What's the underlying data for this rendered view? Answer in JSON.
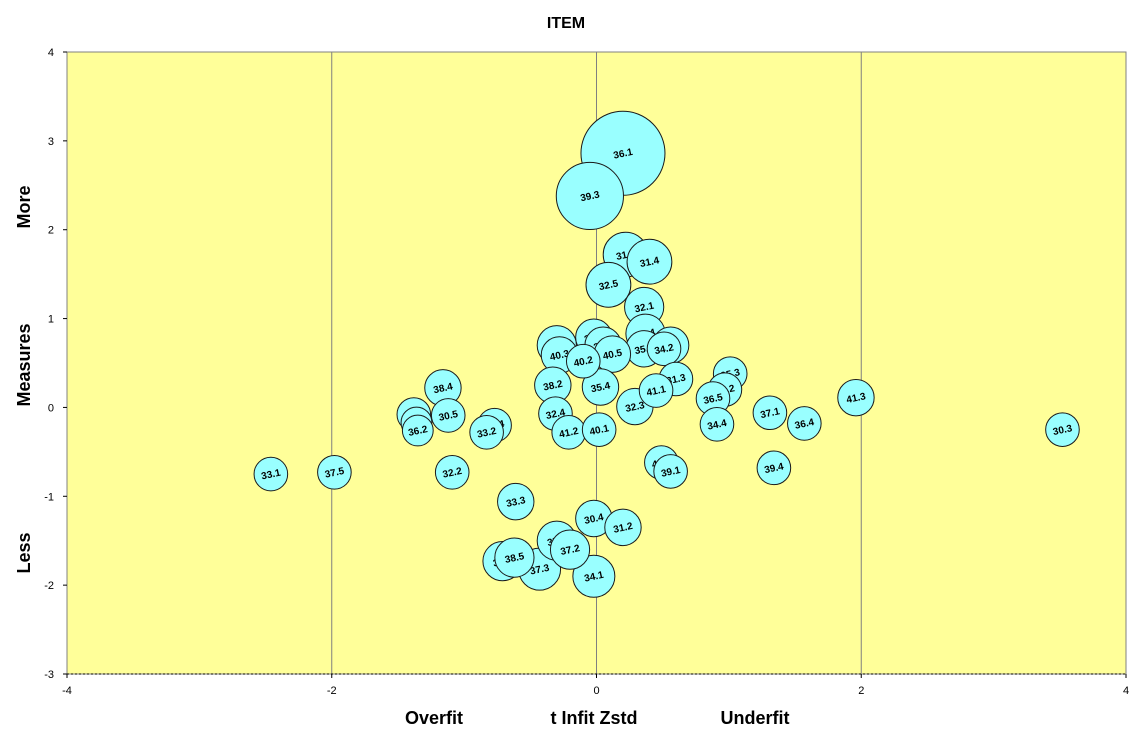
{
  "chart_data": {
    "type": "scatter",
    "title": "ITEM",
    "xlabel": {
      "left": "Overfit",
      "center": "t Infit Zstd",
      "right": "Underfit"
    },
    "ylabel": {
      "bottom": "Less",
      "center": "Measures",
      "top": "More"
    },
    "xlim": [
      -4,
      4
    ],
    "ylim": [
      -3,
      4
    ],
    "x_ticks": [
      "-4",
      "-2",
      "0",
      "2",
      "4"
    ],
    "y_ticks": [
      "-3",
      "-2",
      "-1",
      "0",
      "1",
      "2",
      "3",
      "4"
    ],
    "grid": "vertical",
    "plot_bg": "#ffff99",
    "bubble_fill": "#99ffff",
    "points": [
      {
        "label": "36.1",
        "x": 0.2,
        "y": 2.86,
        "size": 3.0
      },
      {
        "label": "39.3",
        "x": -0.05,
        "y": 2.38,
        "size": 2.4
      },
      {
        "label": "31.1",
        "x": 0.22,
        "y": 1.72,
        "size": 1.6
      },
      {
        "label": "31.4",
        "x": 0.4,
        "y": 1.64,
        "size": 1.6
      },
      {
        "label": "32.5",
        "x": 0.09,
        "y": 1.38,
        "size": 1.6
      },
      {
        "label": "32.1",
        "x": 0.36,
        "y": 1.13,
        "size": 1.4
      },
      {
        "label": "41.4",
        "x": 0.37,
        "y": 0.83,
        "size": 1.4
      },
      {
        "label": "36.2",
        "x": -0.02,
        "y": 0.79,
        "size": 1.3
      },
      {
        "label": "30.1",
        "x": 0.05,
        "y": 0.7,
        "size": 1.3
      },
      {
        "label": "38.3",
        "x": -0.3,
        "y": 0.7,
        "size": 1.4
      },
      {
        "label": "35.2",
        "x": 0.36,
        "y": 0.66,
        "size": 1.3
      },
      {
        "label": "36.3",
        "x": 0.56,
        "y": 0.7,
        "size": 1.3
      },
      {
        "label": "34.2",
        "x": 0.51,
        "y": 0.66,
        "size": 1.2
      },
      {
        "label": "40.3",
        "x": -0.28,
        "y": 0.59,
        "size": 1.3
      },
      {
        "label": "40.5",
        "x": 0.12,
        "y": 0.6,
        "size": 1.3
      },
      {
        "label": "40.2",
        "x": -0.1,
        "y": 0.52,
        "size": 1.2
      },
      {
        "label": "31.3",
        "x": 0.6,
        "y": 0.32,
        "size": 1.2
      },
      {
        "label": "35.3",
        "x": 1.01,
        "y": 0.38,
        "size": 1.2
      },
      {
        "label": "38.4",
        "x": -1.16,
        "y": 0.22,
        "size": 1.3
      },
      {
        "label": "38.2",
        "x": -0.33,
        "y": 0.25,
        "size": 1.3
      },
      {
        "label": "35.4",
        "x": 0.03,
        "y": 0.23,
        "size": 1.3
      },
      {
        "label": "41.1",
        "x": 0.45,
        "y": 0.19,
        "size": 1.2
      },
      {
        "label": "40.2",
        "x": 0.97,
        "y": 0.2,
        "size": 1.2
      },
      {
        "label": "36.5",
        "x": 0.88,
        "y": 0.1,
        "size": 1.2
      },
      {
        "label": "41.3",
        "x": 1.96,
        "y": 0.11,
        "size": 1.3
      },
      {
        "label": "32.3",
        "x": 0.29,
        "y": 0.01,
        "size": 1.3
      },
      {
        "label": "34.5",
        "x": -1.38,
        "y": -0.08,
        "size": 1.2
      },
      {
        "label": "30.5",
        "x": -1.12,
        "y": -0.09,
        "size": 1.2
      },
      {
        "label": "37.1",
        "x": 1.31,
        "y": -0.06,
        "size": 1.2
      },
      {
        "label": "32.4",
        "x": -0.31,
        "y": -0.07,
        "size": 1.2
      },
      {
        "label": "33.4",
        "x": -1.36,
        "y": -0.17,
        "size": 1.1
      },
      {
        "label": "34.4",
        "x": 0.91,
        "y": -0.19,
        "size": 1.2
      },
      {
        "label": "36.4",
        "x": 1.57,
        "y": -0.18,
        "size": 1.2
      },
      {
        "label": "37.4",
        "x": -0.77,
        "y": -0.2,
        "size": 1.2
      },
      {
        "label": "33.2",
        "x": -0.83,
        "y": -0.28,
        "size": 1.2
      },
      {
        "label": "36.2",
        "x": -1.35,
        "y": -0.26,
        "size": 1.1
      },
      {
        "label": "41.2",
        "x": -0.21,
        "y": -0.28,
        "size": 1.2
      },
      {
        "label": "40.1",
        "x": 0.02,
        "y": -0.25,
        "size": 1.2
      },
      {
        "label": "30.3",
        "x": 3.52,
        "y": -0.25,
        "size": 1.2
      },
      {
        "label": "40.4",
        "x": 0.49,
        "y": -0.62,
        "size": 1.2
      },
      {
        "label": "39.1",
        "x": 0.56,
        "y": -0.72,
        "size": 1.2
      },
      {
        "label": "39.4",
        "x": 1.34,
        "y": -0.68,
        "size": 1.2
      },
      {
        "label": "33.1",
        "x": -2.46,
        "y": -0.75,
        "size": 1.2
      },
      {
        "label": "37.5",
        "x": -1.98,
        "y": -0.73,
        "size": 1.2
      },
      {
        "label": "32.2",
        "x": -1.09,
        "y": -0.73,
        "size": 1.2
      },
      {
        "label": "33.3",
        "x": -0.61,
        "y": -1.06,
        "size": 1.3
      },
      {
        "label": "30.4",
        "x": -0.02,
        "y": -1.25,
        "size": 1.3
      },
      {
        "label": "31.2",
        "x": 0.2,
        "y": -1.35,
        "size": 1.3
      },
      {
        "label": "35.3",
        "x": -0.3,
        "y": -1.5,
        "size": 1.4
      },
      {
        "label": "37.2",
        "x": -0.2,
        "y": -1.6,
        "size": 1.4
      },
      {
        "label": "34.6",
        "x": -0.71,
        "y": -1.73,
        "size": 1.4
      },
      {
        "label": "38.5",
        "x": -0.62,
        "y": -1.69,
        "size": 1.4
      },
      {
        "label": "37.3",
        "x": -0.43,
        "y": -1.82,
        "size": 1.5
      },
      {
        "label": "34.1",
        "x": -0.02,
        "y": -1.9,
        "size": 1.5
      }
    ]
  }
}
